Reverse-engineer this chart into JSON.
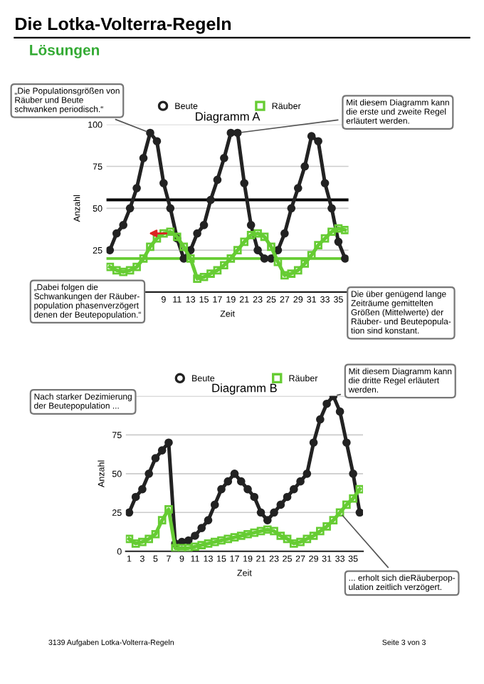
{
  "chart_data": [
    {
      "type": "line",
      "title": "Diagramm A",
      "xlabel": "Zeit",
      "ylabel": "Anzahl",
      "x": [
        1,
        2,
        3,
        4,
        5,
        6,
        7,
        8,
        9,
        10,
        11,
        12,
        13,
        14,
        15,
        16,
        17,
        18,
        19,
        20,
        21,
        22,
        23,
        24,
        25,
        26,
        27,
        28,
        29,
        30,
        31,
        32,
        33,
        34,
        35,
        36
      ],
      "series": [
        {
          "name": "Beute",
          "color": "#222222",
          "marker": "circle",
          "values": [
            25,
            35,
            40,
            50,
            62,
            80,
            95,
            90,
            65,
            50,
            32,
            20,
            25,
            35,
            40,
            55,
            67,
            80,
            95,
            95,
            65,
            40,
            25,
            20,
            20,
            25,
            35,
            50,
            62,
            75,
            93,
            90,
            65,
            50,
            30,
            20
          ]
        },
        {
          "name": "Räuber",
          "color": "#66cc33",
          "marker": "square",
          "values": [
            15,
            13,
            12,
            13,
            15,
            20,
            27,
            32,
            35,
            36,
            33,
            27,
            20,
            8,
            9,
            11,
            13,
            16,
            20,
            25,
            30,
            34,
            35,
            33,
            27,
            18,
            10,
            11,
            13,
            17,
            22,
            28,
            32,
            36,
            38,
            37
          ]
        }
      ],
      "xlim": [
        0.5,
        36.5
      ],
      "xticks": [
        9,
        11,
        13,
        15,
        17,
        19,
        21,
        23,
        25,
        27,
        29,
        31,
        33,
        35
      ],
      "ylim": [
        0,
        100
      ],
      "yticks": [
        {
          "value": 0,
          "label": null
        },
        25,
        50,
        75,
        100
      ],
      "grid": "y",
      "legend": "top",
      "line_style": "solid",
      "ref_lines": [
        {
          "axis": "y",
          "value": 55,
          "color": "#000000"
        },
        {
          "axis": "y",
          "value": 20,
          "color": "#66cc33"
        }
      ],
      "annotations": [
        "Die Lotka-Volterra-Regeln",
        "Lösungen",
        {
          "text": "„Die Populationsgrößen von\nRäuber und Beute\nschwanken periodisch.“",
          "x": 7,
          "y": 95
        },
        {
          "text": "Mit diesem Diagramm kann\ndie erste und zweite Regel\nerläutert werden.",
          "x": 20,
          "y": 95
        },
        "„Dabei folgen die\nSchwankungen der Räuber-\npopulation phasenverzögert\ndenen der Beutepopulation.“",
        "Die über genügend lange\nZeiträume gemittelten\nGrößen (Mittelwerte) der\nRäuber- und Beutepopula-\ntion sind konstant."
      ]
    },
    {
      "type": "line",
      "title": "Diagramm B",
      "xlabel": "Zeit",
      "ylabel": "Anzahl",
      "x": [
        1,
        2,
        3,
        4,
        5,
        6,
        7,
        8,
        9,
        10,
        11,
        12,
        13,
        14,
        15,
        16,
        17,
        18,
        19,
        20,
        21,
        22,
        23,
        24,
        25,
        26,
        27,
        28,
        29,
        30,
        31,
        32,
        33,
        34,
        35,
        36
      ],
      "series": [
        {
          "name": "Beute",
          "color": "#222222",
          "marker": "circle",
          "values": [
            25,
            35,
            40,
            50,
            60,
            65,
            70,
            5,
            6,
            7,
            10,
            15,
            20,
            30,
            40,
            45,
            50,
            45,
            40,
            35,
            25,
            20,
            25,
            30,
            35,
            40,
            45,
            50,
            70,
            85,
            95,
            100,
            90,
            70,
            50,
            25
          ]
        },
        {
          "name": "Räuber",
          "color": "#66cc33",
          "marker": "square",
          "values": [
            8,
            5,
            6,
            8,
            11,
            20,
            27,
            2,
            2,
            2,
            3,
            4,
            5,
            6,
            7,
            8,
            9,
            10,
            11,
            12,
            13,
            14,
            13,
            10,
            8,
            5,
            6,
            8,
            10,
            13,
            16,
            20,
            25,
            30,
            34,
            40
          ]
        }
      ],
      "xlim": [
        0.5,
        36.5
      ],
      "xticks": [
        1,
        3,
        5,
        7,
        9,
        11,
        13,
        15,
        17,
        19,
        21,
        23,
        25,
        27,
        29,
        31,
        33,
        35
      ],
      "ylim": [
        0,
        100
      ],
      "yticks": [
        0,
        25,
        50,
        75,
        {
          "value": 100,
          "label": null
        }
      ],
      "grid": "y",
      "legend": "top",
      "line_style": "solid",
      "annotations": [
        {
          "text": "Mit diesem Diagramm kann\ndie dritte Regel erläutert\nwerden.",
          "x": 32,
          "y": 100
        },
        "Nach starker Dezimierung\nder Beutepopulation ...",
        {
          "text": "... erholt sich dieRäuberpop-\nulation zeitlich verzögert.",
          "x": 33,
          "y": 25
        },
        "3139 Aufgaben Lotka-Volterra-Regeln",
        "Seite 3 von 3"
      ]
    }
  ]
}
